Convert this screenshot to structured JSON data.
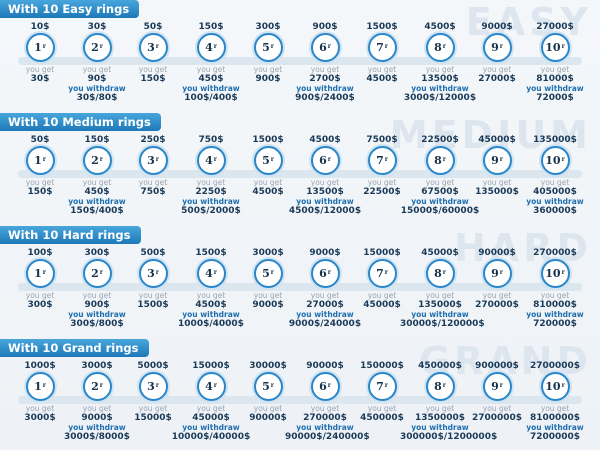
{
  "you_get_label": "you get",
  "withdraw_label": "you withdraw",
  "ring_labels": [
    "1",
    "2",
    "3",
    "4",
    "5",
    "6",
    "7",
    "8",
    "9",
    "10"
  ],
  "ring_suffix": "r",
  "colors": {
    "header": "#1e78b8",
    "ring": "#2a86c8",
    "text": "#1b3a57"
  },
  "sections": [
    {
      "title": "With 10 Easy rings",
      "bg_word": "EASY",
      "prices": [
        "10$",
        "30$",
        "50$",
        "150$",
        "300$",
        "900$",
        "1500$",
        "4500$",
        "9000$",
        "27000$"
      ],
      "gets": [
        "30$",
        "90$",
        "150$",
        "450$",
        "900$",
        "2700$",
        "4500$",
        "13500$",
        "27000$",
        "81000$"
      ],
      "withdraws": {
        "2": "30$/80$",
        "4": "100$/400$",
        "6": "900$/2400$",
        "8": "3000$/12000$",
        "10": "72000$"
      }
    },
    {
      "title": "With 10 Medium rings",
      "bg_word": "MEDIUM",
      "prices": [
        "50$",
        "150$",
        "250$",
        "750$",
        "1500$",
        "4500$",
        "7500$",
        "22500$",
        "45000$",
        "135000$"
      ],
      "gets": [
        "150$",
        "450$",
        "750$",
        "2250$",
        "4500$",
        "13500$",
        "22500$",
        "67500$",
        "135000$",
        "405000$"
      ],
      "withdraws": {
        "2": "150$/400$",
        "4": "500$/2000$",
        "6": "4500$/12000$",
        "8": "15000$/60000$",
        "10": "360000$"
      }
    },
    {
      "title": "With 10 Hard rings",
      "bg_word": "HARD",
      "prices": [
        "100$",
        "300$",
        "500$",
        "1500$",
        "3000$",
        "9000$",
        "15000$",
        "45000$",
        "90000$",
        "270000$"
      ],
      "gets": [
        "300$",
        "900$",
        "1500$",
        "4500$",
        "9000$",
        "27000$",
        "45000$",
        "135000$",
        "270000$",
        "810000$"
      ],
      "withdraws": {
        "2": "300$/800$",
        "4": "1000$/4000$",
        "6": "9000$/24000$",
        "8": "30000$/120000$",
        "10": "720000$"
      }
    },
    {
      "title": "With 10 Grand rings",
      "bg_word": "GRAND",
      "prices": [
        "1000$",
        "3000$",
        "5000$",
        "15000$",
        "30000$",
        "90000$",
        "150000$",
        "450000$",
        "900000$",
        "2700000$"
      ],
      "gets": [
        "3000$",
        "9000$",
        "15000$",
        "45000$",
        "90000$",
        "270000$",
        "450000$",
        "1350000$",
        "2700000$",
        "8100000$"
      ],
      "withdraws": {
        "2": "3000$/8000$",
        "4": "10000$/40000$",
        "6": "90000$/240000$",
        "8": "300000$/1200000$",
        "10": "7200000$"
      }
    }
  ]
}
